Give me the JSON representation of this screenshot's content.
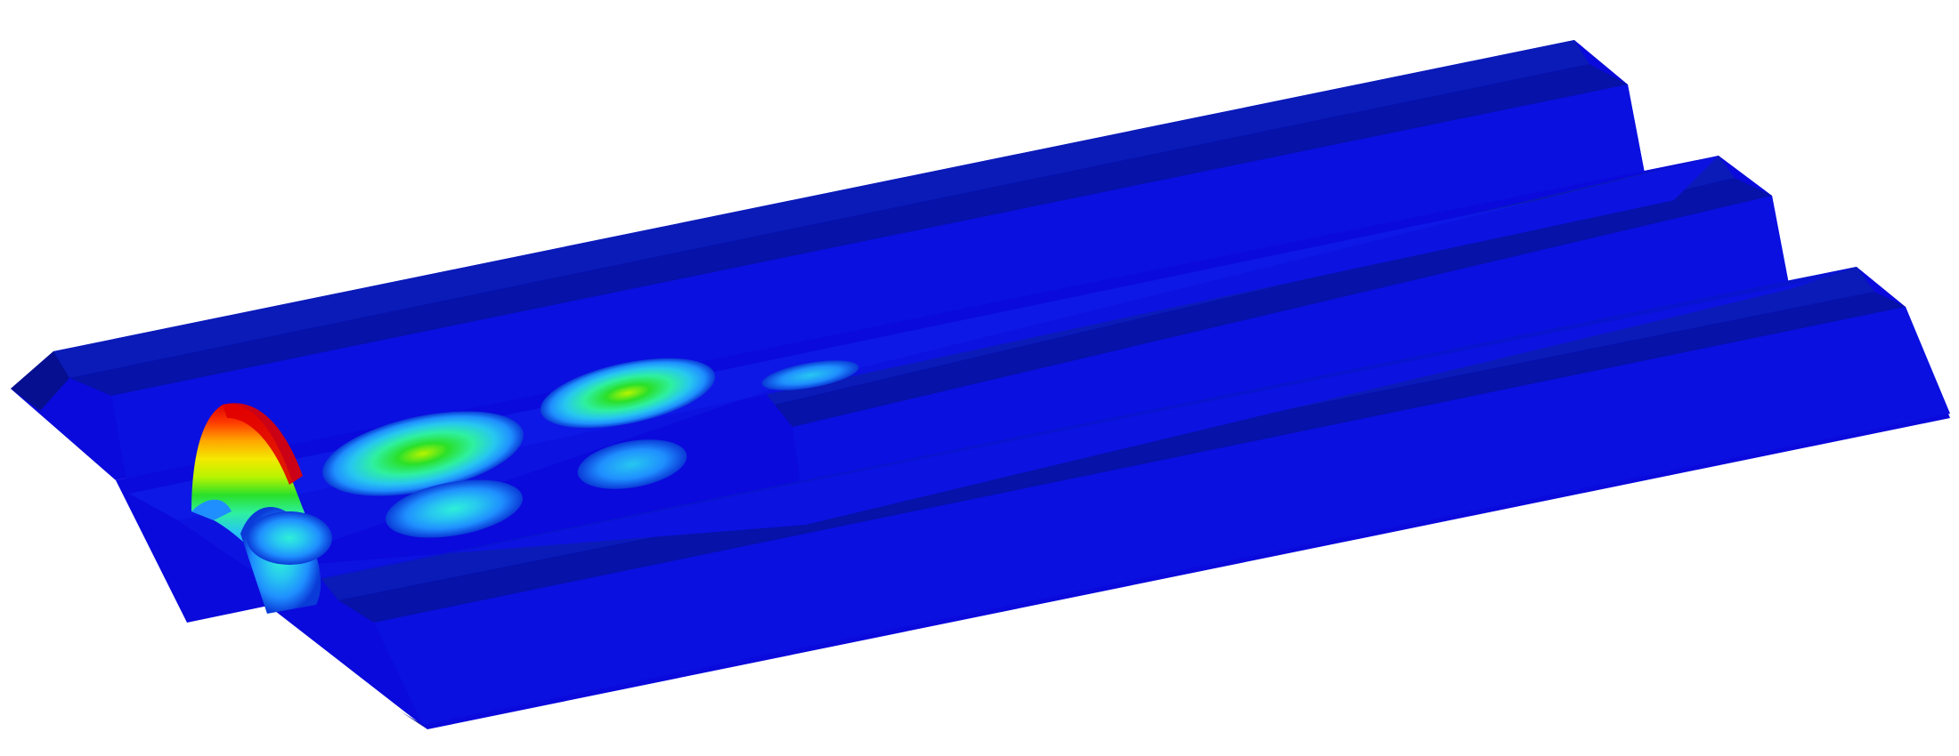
{
  "view": {
    "type": "fea-buckling-contour-render",
    "subject": "trapezoidal-corrugated-deck-panel",
    "contour_colors": [
      "#0000c8",
      "#0a3ad8",
      "#1f8fff",
      "#27c7f0",
      "#2ef0a0",
      "#2ae02a",
      "#b8f400",
      "#f4e800",
      "#ffa400",
      "#ff3a00",
      "#e00000"
    ],
    "base_color": "#0a0adc",
    "background": "#ffffff"
  }
}
